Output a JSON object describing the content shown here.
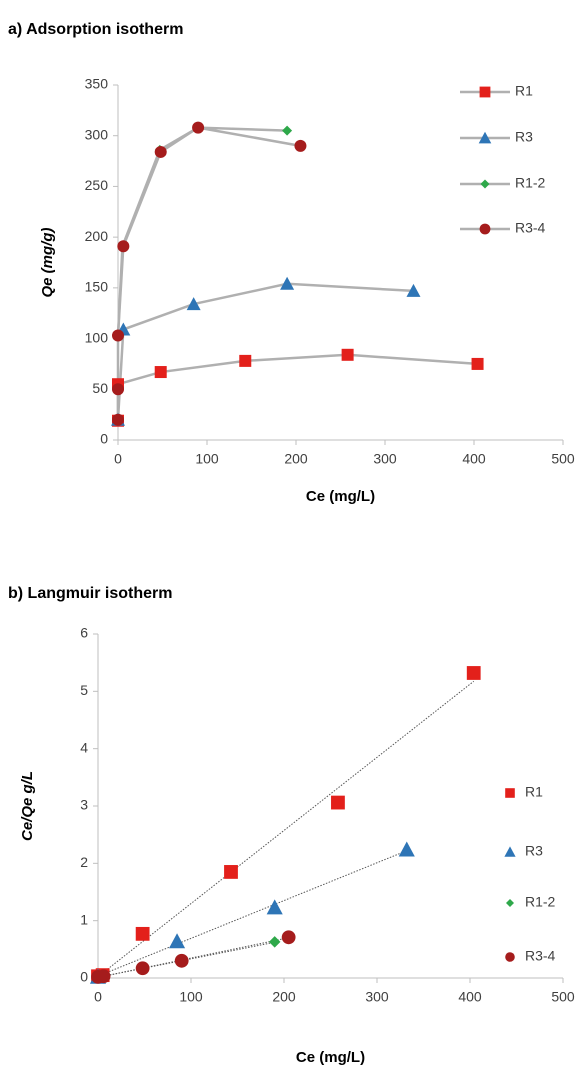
{
  "chart_data": [
    {
      "type": "line",
      "title": "a) Adsorption isotherm",
      "x_label": "Ce (mg/L)",
      "y_label": "Qe (mg/g)",
      "xlim": [
        0,
        500
      ],
      "xticks": [
        0,
        100,
        200,
        300,
        400,
        500
      ],
      "ylim": [
        0,
        350
      ],
      "yticks": [
        0,
        50,
        100,
        150,
        200,
        250,
        300,
        350
      ],
      "line_color": "#b0b0b0",
      "legend": "right",
      "series": [
        {
          "name": "R1",
          "color": "#e3201b",
          "marker": "square",
          "x": [
            0,
            0,
            48,
            143,
            258,
            404
          ],
          "values": [
            19,
            55,
            67,
            78,
            84,
            75
          ]
        },
        {
          "name": "R3",
          "color": "#2e75b6",
          "marker": "triangle",
          "x": [
            0,
            6,
            85,
            190,
            332
          ],
          "values": [
            20,
            109,
            134,
            154,
            147
          ]
        },
        {
          "name": "R1-2",
          "color": "#2ea84a",
          "marker": "diamond",
          "x": [
            0,
            5,
            47,
            90,
            190
          ],
          "values": [
            103,
            191,
            286,
            308,
            305
          ]
        },
        {
          "name": "R3-4",
          "color": "#a51c1c",
          "marker": "circle",
          "x": [
            0,
            0,
            0,
            6,
            48,
            90,
            205
          ],
          "values": [
            20,
            50,
            103,
            191,
            284,
            308,
            290
          ]
        }
      ]
    },
    {
      "type": "scatter",
      "title": "b) Langmuir isotherm",
      "x_label": "Ce (mg/L)",
      "y_label": "Ce/Qe g/L",
      "xlim": [
        0,
        500
      ],
      "xticks": [
        0,
        100,
        200,
        300,
        400,
        500
      ],
      "ylim": [
        0,
        6
      ],
      "yticks": [
        0,
        1,
        2,
        3,
        4,
        5,
        6
      ],
      "trendline": true,
      "legend": "right",
      "series": [
        {
          "name": "R1",
          "color": "#e3201b",
          "marker": "square",
          "x": [
            0,
            5,
            48,
            143,
            258,
            404
          ],
          "values": [
            0.03,
            0.05,
            0.77,
            1.85,
            3.06,
            5.32
          ]
        },
        {
          "name": "R3",
          "color": "#2e75b6",
          "marker": "triangle",
          "x": [
            0,
            85,
            190,
            332
          ],
          "values": [
            0.02,
            0.64,
            1.23,
            2.24
          ]
        },
        {
          "name": "R1-2",
          "color": "#2ea84a",
          "marker": "diamond",
          "x": [
            0,
            5,
            47,
            90,
            190
          ],
          "values": [
            0.02,
            0.03,
            0.16,
            0.29,
            0.63
          ]
        },
        {
          "name": "R3-4",
          "color": "#a51c1c",
          "marker": "circle",
          "x": [
            0,
            6,
            48,
            90,
            205
          ],
          "values": [
            0.02,
            0.03,
            0.17,
            0.3,
            0.71
          ]
        }
      ]
    }
  ]
}
